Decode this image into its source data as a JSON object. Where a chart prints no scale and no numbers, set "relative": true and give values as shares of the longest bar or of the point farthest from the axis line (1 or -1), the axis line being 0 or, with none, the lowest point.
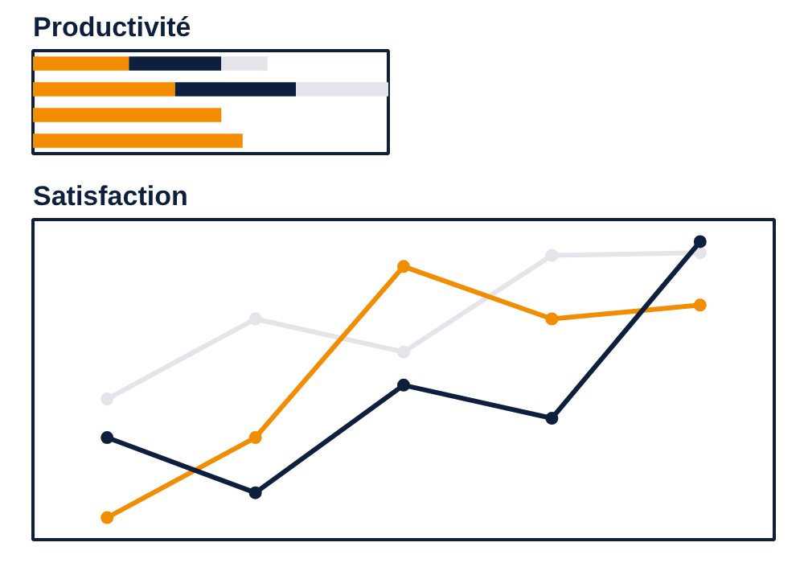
{
  "chart_data": [
    {
      "type": "bar",
      "title": "Productivité",
      "orientation": "horizontal",
      "stacked": true,
      "relative": true,
      "categories": [
        null,
        null,
        null,
        null
      ],
      "series": [
        {
          "color": "#f28c00",
          "values": [
            0.27,
            0.4,
            0.53,
            0.59
          ]
        },
        {
          "color": "#0d1f3c",
          "values": [
            0.26,
            0.34,
            null,
            null
          ]
        },
        {
          "color": "#e4e4ea",
          "values": [
            0.13,
            0.26,
            null,
            null
          ]
        }
      ]
    },
    {
      "type": "line",
      "title": "Satisfaction",
      "relative": true,
      "marker": "circle",
      "categories": [
        null,
        null,
        null,
        null,
        null
      ],
      "series": [
        {
          "color": "#e4e4ea",
          "values": [
            0.43,
            0.72,
            0.6,
            0.95,
            0.96
          ]
        },
        {
          "color": "#f28c00",
          "values": [
            0.0,
            0.29,
            0.91,
            0.72,
            0.77
          ]
        },
        {
          "color": "#0d1f3c",
          "values": [
            0.29,
            0.09,
            0.48,
            0.36,
            1.0
          ]
        }
      ]
    }
  ]
}
